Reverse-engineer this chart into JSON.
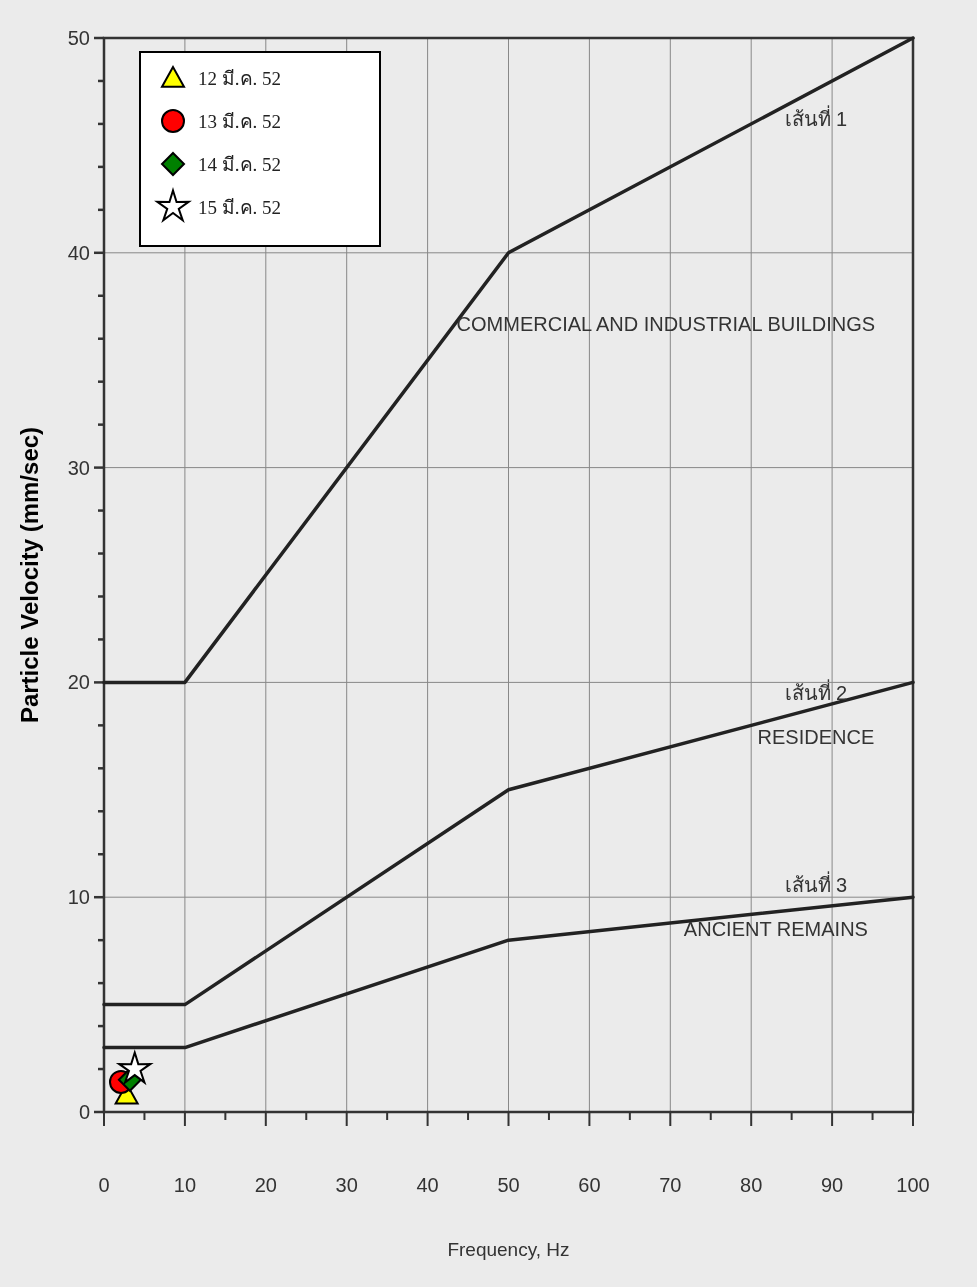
{
  "chart_data": {
    "type": "line",
    "xlabel": "Frequency, Hz",
    "ylabel": "Particle Velocity (mm/sec)",
    "xlim": [
      0,
      100
    ],
    "ylim": [
      0,
      50
    ],
    "xticks": [
      0,
      {
        "value": 5,
        "label": null
      },
      10,
      {
        "value": 15,
        "label": null
      },
      20,
      {
        "value": 25,
        "label": null
      },
      30,
      {
        "value": 35,
        "label": null
      },
      40,
      {
        "value": 45,
        "label": null
      },
      50,
      {
        "value": 55,
        "label": null
      },
      60,
      {
        "value": 65,
        "label": null
      },
      70,
      {
        "value": 75,
        "label": null
      },
      80,
      {
        "value": 85,
        "label": null
      },
      90,
      {
        "value": 95,
        "label": null
      },
      100
    ],
    "yticks": [
      0,
      {
        "value": 2,
        "label": null
      },
      {
        "value": 4,
        "label": null
      },
      {
        "value": 6,
        "label": null
      },
      {
        "value": 8,
        "label": null
      },
      10,
      {
        "value": 12,
        "label": null
      },
      {
        "value": 14,
        "label": null
      },
      {
        "value": 16,
        "label": null
      },
      {
        "value": 18,
        "label": null
      },
      20,
      {
        "value": 22,
        "label": null
      },
      {
        "value": 24,
        "label": null
      },
      {
        "value": 26,
        "label": null
      },
      {
        "value": 28,
        "label": null
      },
      30,
      {
        "value": 32,
        "label": null
      },
      {
        "value": 34,
        "label": null
      },
      {
        "value": 36,
        "label": null
      },
      {
        "value": 38,
        "label": null
      },
      40,
      {
        "value": 42,
        "label": null
      },
      {
        "value": 44,
        "label": null
      },
      {
        "value": 46,
        "label": null
      },
      {
        "value": 48,
        "label": null
      },
      50
    ],
    "grid": true,
    "legend": "top left",
    "line_style": "solid",
    "series": [
      {
        "name": "เส้นที่ 1",
        "marker": "none",
        "color": "#222222",
        "x": [
          0,
          10,
          50,
          100
        ],
        "values": [
          20,
          20,
          40,
          50
        ]
      },
      {
        "name": "เส้นที่ 2",
        "marker": "none",
        "color": "#222222",
        "x": [
          0,
          10,
          50,
          100
        ],
        "values": [
          5,
          5,
          15,
          20
        ]
      },
      {
        "name": "เส้นที่ 3",
        "marker": "none",
        "color": "#222222",
        "x": [
          0,
          10,
          50,
          100
        ],
        "values": [
          3,
          3,
          8,
          10
        ]
      },
      {
        "name": "12 มี.ค. 52",
        "type": "scatter",
        "marker": "triangle",
        "color": "#ffff00",
        "x": [
          2.8
        ],
        "values": [
          0.8
        ]
      },
      {
        "name": "13 มี.ค. 52",
        "type": "scatter",
        "marker": "circle",
        "color": "#ff0000",
        "x": [
          2.1
        ],
        "values": [
          1.4
        ]
      },
      {
        "name": "14 มี.ค. 52",
        "type": "scatter",
        "marker": "diamond",
        "color": "#008000",
        "x": [
          3.2
        ],
        "values": [
          1.5
        ]
      },
      {
        "name": "15 มี.ค. 52",
        "type": "scatter",
        "marker": "star",
        "color": "#ffffff",
        "x": [
          3.8
        ],
        "values": [
          2
        ]
      }
    ],
    "annotations": [
      "COMMERCIAL AND INDUSTRIAL BUILDINGS",
      "RESIDENCE",
      "ANCIENT REMAINS"
    ]
  }
}
